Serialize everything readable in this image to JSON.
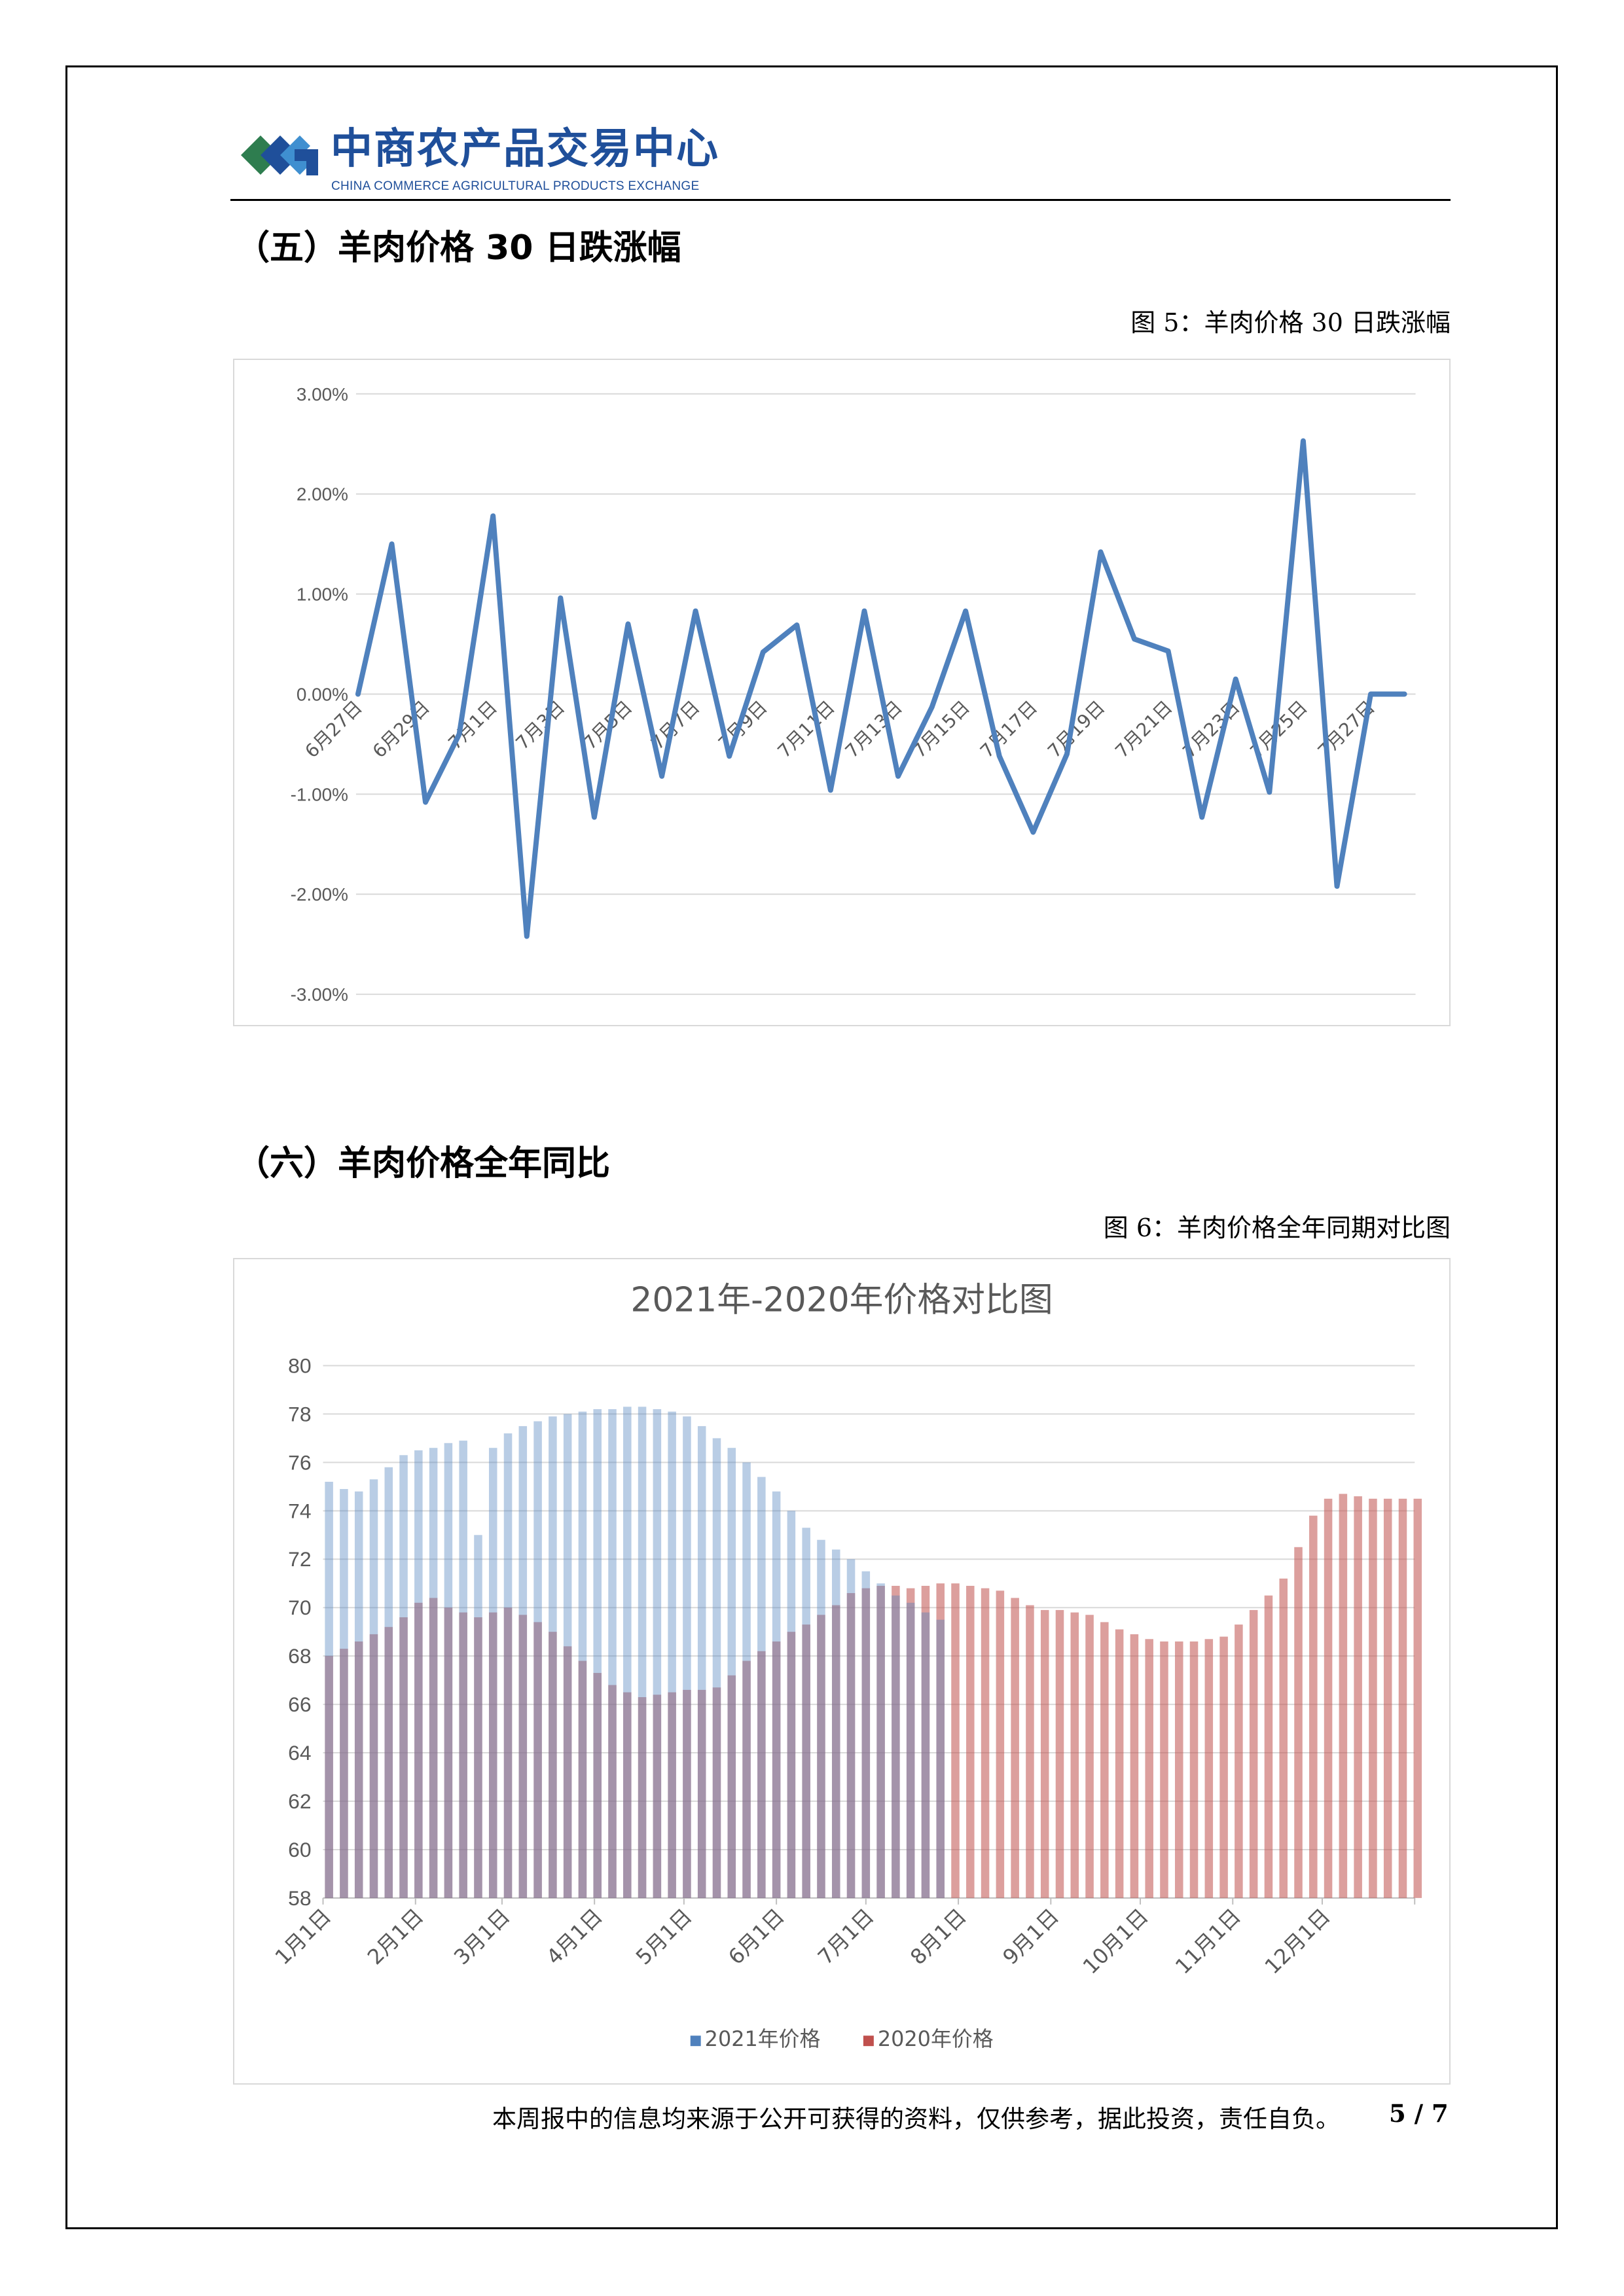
{
  "header": {
    "brand_cn": "中商农产品交易中心",
    "brand_en": "CHINA COMMERCE AGRICULTURAL PRODUCTS EXCHANGE",
    "brand_color": "#1f4f9a"
  },
  "sections": [
    {
      "title": "（五）羊肉价格 30 日跌涨幅",
      "caption": "图 5：羊肉价格 30 日跌涨幅"
    },
    {
      "title": "（六）羊肉价格全年同比",
      "caption": "图 6：羊肉价格全年同期对比图"
    }
  ],
  "footer": {
    "note": "本周报中的信息均来源于公开可获得的资料，仅供参考，据此投资，责任自负。",
    "page": "5 / 7"
  },
  "chart_data": [
    {
      "type": "line",
      "title": "",
      "color": "#4f81bd",
      "grid": true,
      "y_format": "percent",
      "yticks": [
        "3.00%",
        "2.00%",
        "1.00%",
        "0.00%",
        "-1.00%",
        "-2.00%",
        "-3.00%"
      ],
      "ylim": [
        -3,
        3
      ],
      "xtick_labels": [
        "6月27日",
        "6月29日",
        "7月1日",
        "7月3日",
        "7月5日",
        "7月7日",
        "7月9日",
        "7月11日",
        "7月13日",
        "7月15日",
        "7月17日",
        "7月19日",
        "7月21日",
        "7月23日",
        "7月25日",
        "7月27日"
      ],
      "x": [
        "6月27日",
        "6月28日",
        "6月29日",
        "6月30日",
        "7月1日",
        "7月2日",
        "7月3日",
        "7月4日",
        "7月5日",
        "7月6日",
        "7月7日",
        "7月8日",
        "7月9日",
        "7月10日",
        "7月11日",
        "7月12日",
        "7月13日",
        "7月14日",
        "7月15日",
        "7月16日",
        "7月17日",
        "7月18日",
        "7月19日",
        "7月20日",
        "7月21日",
        "7月22日",
        "7月23日",
        "7月24日",
        "7月25日",
        "7月26日",
        "7月27日",
        "7月28日"
      ],
      "values": [
        0.0,
        1.5,
        -1.08,
        -0.4,
        1.78,
        -2.42,
        0.96,
        -1.23,
        0.7,
        -0.82,
        0.83,
        -0.62,
        0.42,
        0.69,
        -0.96,
        0.83,
        -0.82,
        -0.13,
        0.83,
        -0.62,
        -1.38,
        -0.6,
        1.42,
        0.55,
        0.43,
        -1.23,
        0.15,
        -0.98,
        2.53,
        -1.92,
        0.0,
        0.0
      ]
    },
    {
      "type": "bar",
      "title": "2021年-2020年价格对比图",
      "grid": true,
      "ylim": [
        58,
        80
      ],
      "yticks": [
        "80",
        "78",
        "76",
        "74",
        "72",
        "70",
        "68",
        "66",
        "64",
        "62",
        "60",
        "58"
      ],
      "xtick_labels": [
        "1月1日",
        "2月1日",
        "3月1日",
        "4月1日",
        "5月1日",
        "6月1日",
        "7月1日",
        "8月1日",
        "9月1日",
        "10月1日",
        "11月1日",
        "12月1日"
      ],
      "legend_position": "bottom",
      "sample_interval_days": 5,
      "series": [
        {
          "name": "2021年价格",
          "color": "#4f81bd",
          "values": [
            75.2,
            74.9,
            74.8,
            75.3,
            75.8,
            76.3,
            76.5,
            76.6,
            76.8,
            76.9,
            73.0,
            76.6,
            77.2,
            77.5,
            77.7,
            77.9,
            78.0,
            78.1,
            78.2,
            78.2,
            78.3,
            78.3,
            78.2,
            78.1,
            77.9,
            77.5,
            77.0,
            76.6,
            76.0,
            75.4,
            74.8,
            74.0,
            73.3,
            72.8,
            72.4,
            72.0,
            71.5,
            71.0,
            70.5,
            70.2,
            69.8,
            69.5
          ]
        },
        {
          "name": "2020年价格",
          "color": "#c0504d",
          "values": [
            68.0,
            68.3,
            68.6,
            68.9,
            69.2,
            69.6,
            70.2,
            70.4,
            70.0,
            69.8,
            69.6,
            69.8,
            70.0,
            69.7,
            69.4,
            69.0,
            68.4,
            67.8,
            67.3,
            66.8,
            66.5,
            66.3,
            66.4,
            66.5,
            66.6,
            66.6,
            66.7,
            67.2,
            67.8,
            68.2,
            68.6,
            69.0,
            69.3,
            69.7,
            70.1,
            70.6,
            70.8,
            70.9,
            70.9,
            70.8,
            70.9,
            71.0,
            71.0,
            70.9,
            70.8,
            70.7,
            70.4,
            70.1,
            69.9,
            69.9,
            69.8,
            69.7,
            69.4,
            69.1,
            68.9,
            68.7,
            68.6,
            68.6,
            68.6,
            68.7,
            68.8,
            69.3,
            69.9,
            70.5,
            71.2,
            72.5,
            73.8,
            74.5,
            74.7,
            74.6,
            74.5,
            74.5,
            74.5,
            74.5
          ]
        }
      ]
    }
  ]
}
